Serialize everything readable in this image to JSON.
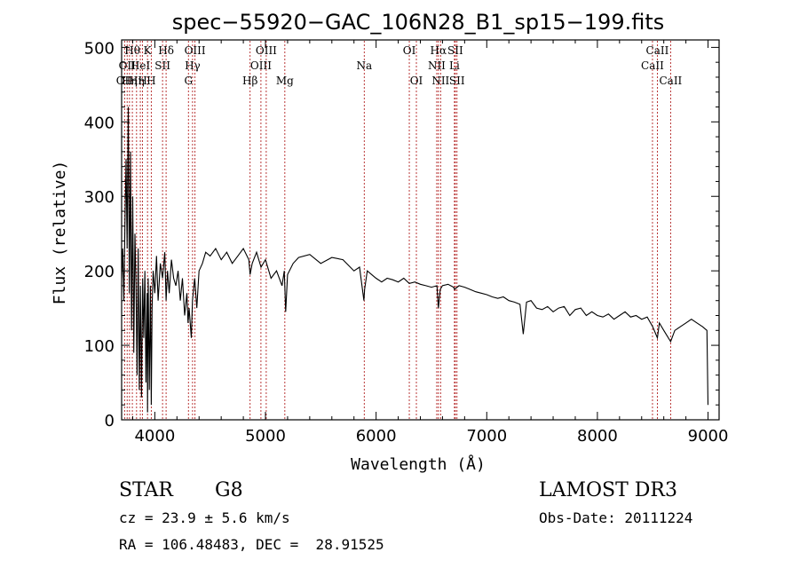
{
  "chart_data": {
    "type": "line",
    "title": "spec−55920−GAC_106N28_B1_sp15−199.fits",
    "xlabel": "Wavelength (Å)",
    "ylabel": "Flux (relative)",
    "xlim": [
      3700,
      9100
    ],
    "ylim": [
      0,
      510
    ],
    "x_ticks": [
      4000,
      5000,
      6000,
      7000,
      8000,
      9000
    ],
    "y_ticks": [
      0,
      100,
      200,
      300,
      400,
      500
    ],
    "series": [
      {
        "name": "flux",
        "x": [
          3700,
          3710,
          3720,
          3730,
          3740,
          3750,
          3760,
          3770,
          3780,
          3790,
          3800,
          3810,
          3820,
          3830,
          3840,
          3850,
          3860,
          3870,
          3880,
          3890,
          3900,
          3910,
          3920,
          3930,
          3934,
          3940,
          3950,
          3960,
          3968,
          3975,
          3985,
          4000,
          4015,
          4030,
          4050,
          4070,
          4090,
          4102,
          4115,
          4130,
          4150,
          4170,
          4190,
          4210,
          4230,
          4250,
          4270,
          4290,
          4300,
          4310,
          4330,
          4340,
          4360,
          4380,
          4400,
          4430,
          4460,
          4500,
          4550,
          4600,
          4650,
          4700,
          4750,
          4800,
          4850,
          4861,
          4880,
          4920,
          4960,
          5000,
          5050,
          5100,
          5150,
          5170,
          5183,
          5200,
          5250,
          5300,
          5400,
          5500,
          5600,
          5700,
          5800,
          5850,
          5890,
          5896,
          5920,
          5960,
          6000,
          6050,
          6100,
          6150,
          6200,
          6250,
          6300,
          6350,
          6400,
          6450,
          6500,
          6550,
          6563,
          6580,
          6600,
          6650,
          6700,
          6708,
          6750,
          6800,
          6850,
          6900,
          6950,
          7000,
          7050,
          7100,
          7150,
          7200,
          7250,
          7300,
          7330,
          7360,
          7400,
          7450,
          7500,
          7550,
          7600,
          7650,
          7700,
          7750,
          7800,
          7850,
          7900,
          7950,
          8000,
          8050,
          8100,
          8150,
          8200,
          8250,
          8300,
          8350,
          8400,
          8450,
          8500,
          8542,
          8560,
          8600,
          8662,
          8700,
          8750,
          8800,
          8850,
          8900,
          8950,
          8990,
          9000
        ],
        "values": [
          190,
          230,
          160,
          260,
          350,
          230,
          420,
          170,
          360,
          120,
          300,
          90,
          250,
          180,
          60,
          230,
          40,
          180,
          30,
          190,
          110,
          200,
          50,
          170,
          10,
          190,
          40,
          180,
          20,
          150,
          200,
          170,
          220,
          160,
          210,
          190,
          225,
          160,
          200,
          170,
          215,
          190,
          180,
          200,
          160,
          190,
          140,
          170,
          130,
          150,
          110,
          160,
          190,
          150,
          200,
          210,
          225,
          220,
          230,
          215,
          225,
          210,
          220,
          230,
          215,
          195,
          210,
          225,
          205,
          215,
          190,
          200,
          180,
          200,
          145,
          195,
          210,
          218,
          222,
          210,
          218,
          215,
          200,
          205,
          160,
          175,
          200,
          195,
          190,
          185,
          190,
          188,
          185,
          190,
          183,
          185,
          182,
          180,
          178,
          180,
          150,
          175,
          180,
          182,
          178,
          175,
          180,
          178,
          175,
          172,
          170,
          168,
          165,
          163,
          165,
          160,
          158,
          155,
          115,
          158,
          160,
          150,
          148,
          152,
          145,
          150,
          152,
          140,
          148,
          150,
          140,
          145,
          140,
          138,
          142,
          135,
          140,
          145,
          138,
          140,
          135,
          138,
          125,
          110,
          130,
          120,
          105,
          120,
          125,
          130,
          135,
          130,
          125,
          120,
          20
        ]
      }
    ],
    "lines": [
      {
        "wave": 3727,
        "label": "OII",
        "row": 3
      },
      {
        "wave": 3750,
        "label": "OII",
        "row": 2
      },
      {
        "wave": 3771,
        "label": "Hη",
        "row": 3
      },
      {
        "wave": 3797,
        "label": "Hθ",
        "row": 1
      },
      {
        "wave": 3835,
        "label": "Hη",
        "row": 3
      },
      {
        "wave": 3869,
        "label": "HeI",
        "row": 2
      },
      {
        "wave": 3889,
        "label": "H",
        "row": 3
      },
      {
        "wave": 3934,
        "label": "K",
        "row": 1
      },
      {
        "wave": 3968,
        "label": "H",
        "row": 3
      },
      {
        "wave": 4070,
        "label": "SII",
        "row": 2
      },
      {
        "wave": 4102,
        "label": "Hδ",
        "row": 1
      },
      {
        "wave": 4304,
        "label": "G",
        "row": 3
      },
      {
        "wave": 4341,
        "label": "Hγ",
        "row": 2
      },
      {
        "wave": 4363,
        "label": "OIII",
        "row": 1
      },
      {
        "wave": 4861,
        "label": "Hβ",
        "row": 3
      },
      {
        "wave": 4959,
        "label": "OIII",
        "row": 2
      },
      {
        "wave": 5007,
        "label": "OIII",
        "row": 1
      },
      {
        "wave": 5175,
        "label": "Mg",
        "row": 3
      },
      {
        "wave": 5893,
        "label": "Na",
        "row": 2
      },
      {
        "wave": 6300,
        "label": "OI",
        "row": 1
      },
      {
        "wave": 6364,
        "label": "OI",
        "row": 3
      },
      {
        "wave": 6548,
        "label": "NII",
        "row": 2
      },
      {
        "wave": 6563,
        "label": "Hα",
        "row": 1
      },
      {
        "wave": 6583,
        "label": "NII",
        "row": 3
      },
      {
        "wave": 6708,
        "label": "Li",
        "row": 2
      },
      {
        "wave": 6716,
        "label": "SII",
        "row": 1
      },
      {
        "wave": 6731,
        "label": "SII",
        "row": 3
      },
      {
        "wave": 8498,
        "label": "CaII",
        "row": 2
      },
      {
        "wave": 8542,
        "label": "CaII",
        "row": 1
      },
      {
        "wave": 8662,
        "label": "CaII",
        "row": 3
      }
    ]
  },
  "info": {
    "class": "STAR",
    "subclass": "G8",
    "survey": "LAMOST DR3",
    "cz": "cz = 23.9 ± 5.6 km/s",
    "obs_date": "Obs-Date: 20111224",
    "coords": "RA = 106.48483, DEC =  28.91525"
  }
}
